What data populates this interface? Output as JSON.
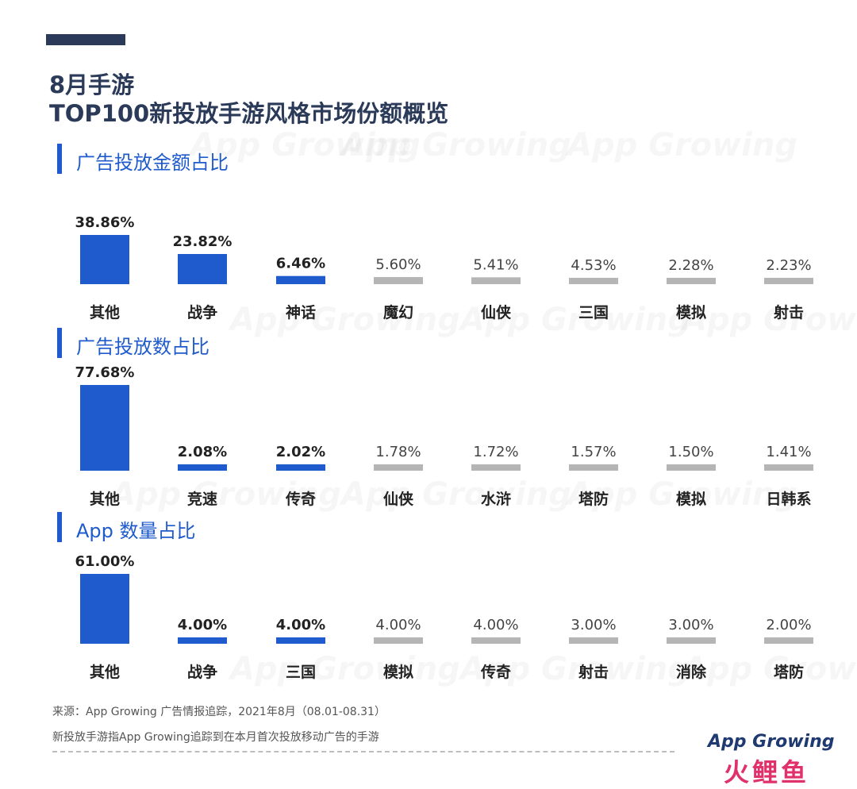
{
  "header": {
    "title_line1": "8月手游",
    "title_line2": "TOP100新投放手游风格市场份额概览"
  },
  "watermark": "App Growing",
  "colors": {
    "highlight": "#1f5bcc",
    "muted": "#b5b5b5",
    "title": "#2b3a58"
  },
  "chart_data": [
    {
      "type": "bar",
      "title": "广告投放金额占比",
      "categories": [
        "其他",
        "战争",
        "神话",
        "魔幻",
        "仙侠",
        "三国",
        "模拟",
        "射击"
      ],
      "values": [
        38.86,
        23.82,
        6.46,
        5.6,
        5.41,
        4.53,
        2.28,
        2.23
      ],
      "labels": [
        "38.86%",
        "23.82%",
        "6.46%",
        "5.60%",
        "5.41%",
        "4.53%",
        "2.28%",
        "2.23%"
      ],
      "highlighted": [
        true,
        true,
        true,
        false,
        false,
        false,
        false,
        false
      ],
      "ylim": [
        0,
        40
      ]
    },
    {
      "type": "bar",
      "title": "广告投放数占比",
      "categories": [
        "其他",
        "竞速",
        "传奇",
        "仙侠",
        "水浒",
        "塔防",
        "模拟",
        "日韩系"
      ],
      "values": [
        77.68,
        2.08,
        2.02,
        1.78,
        1.72,
        1.57,
        1.5,
        1.41
      ],
      "labels": [
        "77.68%",
        "2.08%",
        "2.02%",
        "1.78%",
        "1.72%",
        "1.57%",
        "1.50%",
        "1.41%"
      ],
      "highlighted": [
        true,
        true,
        true,
        false,
        false,
        false,
        false,
        false
      ],
      "ylim": [
        0,
        80
      ]
    },
    {
      "type": "bar",
      "title": "App 数量占比",
      "categories": [
        "其他",
        "战争",
        "三国",
        "模拟",
        "传奇",
        "射击",
        "消除",
        "塔防"
      ],
      "values": [
        61.0,
        4.0,
        4.0,
        4.0,
        4.0,
        3.0,
        3.0,
        2.0
      ],
      "labels": [
        "61.00%",
        "4.00%",
        "4.00%",
        "4.00%",
        "4.00%",
        "3.00%",
        "3.00%",
        "2.00%"
      ],
      "highlighted": [
        true,
        true,
        true,
        false,
        false,
        false,
        false,
        false
      ],
      "ylim": [
        0,
        65
      ]
    }
  ],
  "footer": {
    "source": "来源：App Growing 广告情报追踪，2021年8月（08.01-08.31）",
    "note": "新投放手游指App Growing追踪到在本月首次投放移动广告的手游",
    "brand": "App Growing",
    "brand2": "火鲤鱼"
  }
}
